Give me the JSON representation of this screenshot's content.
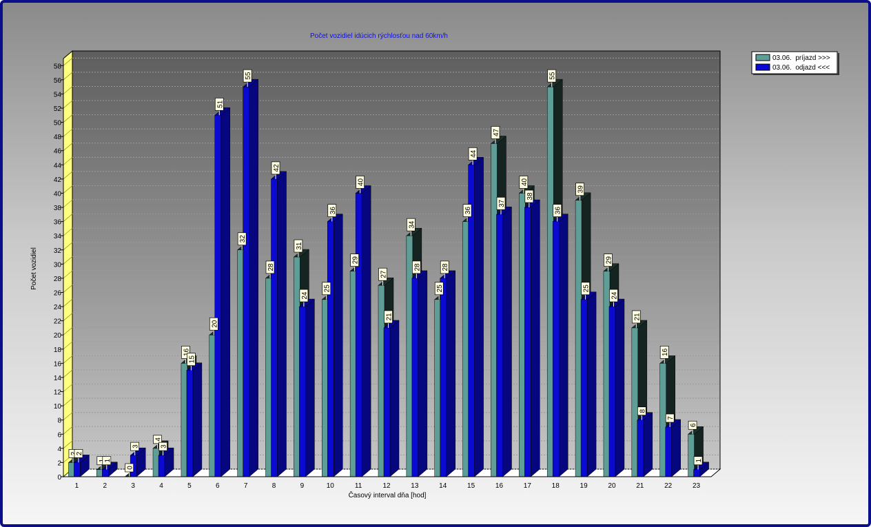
{
  "chart_data": {
    "type": "bar",
    "title": "Počet vozidiel idúcich rýchlosťou nad 60km/h",
    "xlabel": "Časový interval dňa [hod]",
    "ylabel": "Počet vozidiel",
    "ylim": [
      0,
      59
    ],
    "yticks": [
      0,
      2,
      4,
      6,
      8,
      10,
      12,
      14,
      16,
      18,
      20,
      22,
      24,
      26,
      28,
      30,
      32,
      34,
      36,
      38,
      40,
      42,
      44,
      46,
      48,
      50,
      52,
      54,
      56,
      58
    ],
    "grid": true,
    "legend_position": "top-right",
    "categories": [
      "1",
      "2",
      "3",
      "4",
      "5",
      "6",
      "7",
      "8",
      "9",
      "10",
      "11",
      "12",
      "13",
      "14",
      "15",
      "16",
      "17",
      "18",
      "19",
      "20",
      "21",
      "22",
      "23"
    ],
    "series": [
      {
        "name": "03.06.  príjazd >>>",
        "color": "#5f9e96",
        "values": [
          2,
          1,
          0,
          4,
          16,
          20,
          32,
          28,
          31,
          25,
          29,
          27,
          34,
          25,
          36,
          47,
          40,
          55,
          39,
          29,
          21,
          16,
          6
        ]
      },
      {
        "name": "03.06.  odjazd <<<",
        "color": "#0a0ad2",
        "values": [
          2,
          1,
          3,
          3,
          15,
          51,
          55,
          42,
          24,
          36,
          40,
          21,
          28,
          28,
          44,
          37,
          38,
          36,
          25,
          24,
          8,
          7,
          1
        ]
      }
    ]
  }
}
